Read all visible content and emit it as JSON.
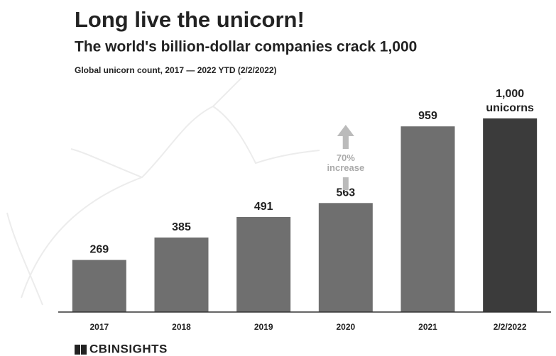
{
  "chart_data": {
    "type": "bar",
    "title": "Long live the unicorn!",
    "subtitle": "The world's billion-dollar companies crack 1,000",
    "caption": "Global unicorn count, 2017 — 2022 YTD (2/2/2022)",
    "categories": [
      "2017",
      "2018",
      "2019",
      "2020",
      "2021",
      "2/2/2022"
    ],
    "values": [
      269,
      385,
      491,
      563,
      959,
      1000
    ],
    "value_labels": [
      "269",
      "385",
      "491",
      "563",
      "959",
      "1,000 unicorns"
    ],
    "colors": [
      "#6f6f6f",
      "#6f6f6f",
      "#6f6f6f",
      "#6f6f6f",
      "#6f6f6f",
      "#3b3b3b"
    ],
    "ylim": [
      0,
      1000
    ],
    "annotation": "70% increase",
    "source": "CBINSIGHTS"
  }
}
